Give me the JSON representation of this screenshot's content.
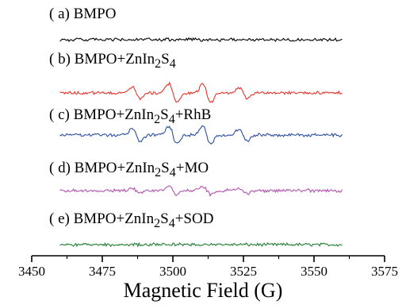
{
  "chart_data": {
    "type": "line",
    "xlabel": "Magnetic Field (G)",
    "ylabel": "",
    "xlim": [
      3450,
      3575
    ],
    "xticks": [
      3450,
      3475,
      3500,
      3525,
      3550,
      3575
    ],
    "x_range_plotted": [
      3460,
      3560
    ],
    "yaxis_visible": false,
    "grid": false,
    "series": [
      {
        "label": {
          "prefix": "( a)  ",
          "parts": [
            {
              "t": "BMPO"
            }
          ]
        },
        "color": "#000000",
        "peaks": []
      },
      {
        "label": {
          "prefix": "( b)  ",
          "parts": [
            {
              "t": "BMPO+ZnIn"
            },
            {
              "t": "2",
              "sub": true
            },
            {
              "t": "S"
            },
            {
              "t": "4",
              "sub": true
            }
          ]
        },
        "color": "#e8332a",
        "peaks": [
          {
            "x": 3487,
            "a": 0.55
          },
          {
            "x": 3500,
            "a": 0.9
          },
          {
            "x": 3512,
            "a": 0.9
          },
          {
            "x": 3525,
            "a": 0.5
          }
        ]
      },
      {
        "label": {
          "prefix": "( c)  ",
          "parts": [
            {
              "t": "BMPO+ZnIn"
            },
            {
              "t": "2",
              "sub": true
            },
            {
              "t": "S"
            },
            {
              "t": "4",
              "sub": true
            },
            {
              "t": "+RhB"
            }
          ]
        },
        "color": "#2b4ea2",
        "peaks": [
          {
            "x": 3487,
            "a": 0.65
          },
          {
            "x": 3500,
            "a": 0.85
          },
          {
            "x": 3512,
            "a": 0.85
          },
          {
            "x": 3525,
            "a": 0.6
          }
        ]
      },
      {
        "label": {
          "prefix": "( d)  ",
          "parts": [
            {
              "t": "BMPO+ZnIn"
            },
            {
              "t": "2",
              "sub": true
            },
            {
              "t": "S"
            },
            {
              "t": "4",
              "sub": true
            },
            {
              "t": "+MO"
            }
          ]
        },
        "color": "#b251b0",
        "peaks": [
          {
            "x": 3487,
            "a": 0.25
          },
          {
            "x": 3500,
            "a": 0.4
          },
          {
            "x": 3512,
            "a": 0.35
          },
          {
            "x": 3525,
            "a": 0.25
          }
        ]
      },
      {
        "label": {
          "prefix": "( e)  ",
          "parts": [
            {
              "t": "BMPO+ZnIn"
            },
            {
              "t": "2",
              "sub": true
            },
            {
              "t": "S"
            },
            {
              "t": "4",
              "sub": true
            },
            {
              "t": "+SOD"
            }
          ]
        },
        "color": "#1e7d2f",
        "peaks": []
      }
    ]
  }
}
